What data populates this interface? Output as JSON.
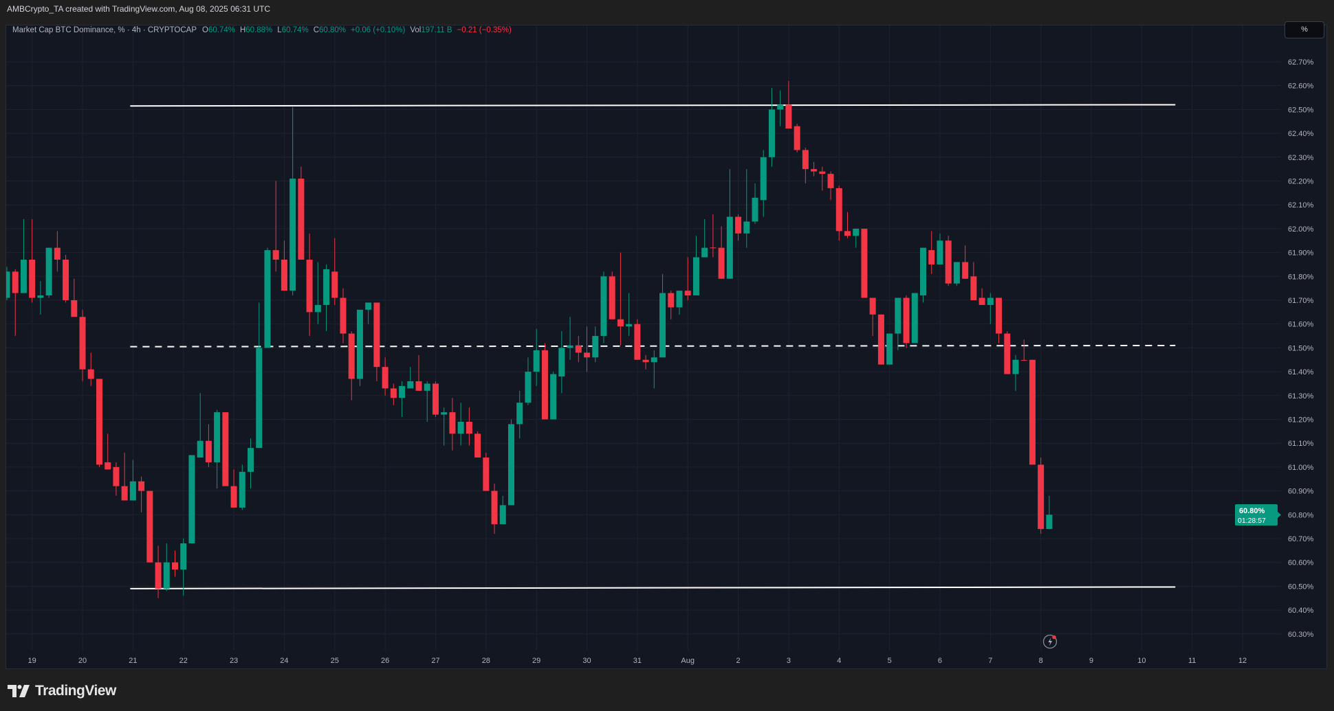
{
  "credit": "AMBCrypto_TA created with TradingView.com, Aug 08, 2025 06:31 UTC",
  "legend": {
    "symbol": "Market Cap BTC Dominance, % · 4h · CRYPTOCAP",
    "o_label": "O",
    "o": "60.74%",
    "h_label": "H",
    "h": "60.88%",
    "l_label": "L",
    "l": "60.74%",
    "c_label": "C",
    "c": "60.80%",
    "change": "+0.06 (+0.10%)",
    "vol_label": "Vol",
    "vol": "197.11 B",
    "vol_change": "−0.21 (−0.35%)"
  },
  "scale_button": "%",
  "current_price": {
    "value": "60.80%",
    "countdown": "01:28:57"
  },
  "brand": "TradingView",
  "colors": {
    "up": "#089981",
    "down": "#f23645",
    "background": "#131722",
    "grid": "#1f2330",
    "line": "#ffffff"
  },
  "icons": {
    "alert": "lightning-icon",
    "logo": "tradingview-logo"
  },
  "chart_data": {
    "type": "candlestick",
    "interval": "4h",
    "ylim": [
      60.25,
      62.8
    ],
    "grid": true,
    "y_ticks": [
      "62.70%",
      "62.60%",
      "62.50%",
      "62.40%",
      "62.30%",
      "62.20%",
      "62.10%",
      "62.00%",
      "61.90%",
      "61.80%",
      "61.70%",
      "61.60%",
      "61.50%",
      "61.40%",
      "61.30%",
      "61.20%",
      "61.10%",
      "61.00%",
      "60.90%",
      "60.80%",
      "60.70%",
      "60.60%",
      "60.50%",
      "60.40%",
      "60.30%"
    ],
    "x_ticks": [
      "19",
      "20",
      "21",
      "22",
      "23",
      "24",
      "25",
      "26",
      "27",
      "28",
      "29",
      "30",
      "31",
      "Aug",
      "2",
      "3",
      "4",
      "5",
      "6",
      "7",
      "8",
      "9",
      "10",
      "11",
      "12"
    ],
    "candle_fields": [
      "time",
      "open",
      "high",
      "low",
      "close"
    ],
    "candles": [
      [
        "07-18 12:00",
        61.71,
        61.84,
        61.7,
        61.82
      ],
      [
        "07-18 16:00",
        61.82,
        61.83,
        61.55,
        61.73
      ],
      [
        "07-18 20:00",
        61.73,
        62.04,
        61.73,
        61.87
      ],
      [
        "07-19 00:00",
        61.87,
        62.04,
        61.69,
        61.71
      ],
      [
        "07-19 04:00",
        61.71,
        61.78,
        61.64,
        61.72
      ],
      [
        "07-19 08:00",
        61.72,
        61.92,
        61.71,
        61.92
      ],
      [
        "07-19 12:00",
        61.92,
        61.99,
        61.82,
        61.87
      ],
      [
        "07-19 16:00",
        61.87,
        61.89,
        61.69,
        61.7
      ],
      [
        "07-19 20:00",
        61.7,
        61.79,
        61.63,
        61.63
      ],
      [
        "07-20 00:00",
        61.63,
        61.66,
        61.36,
        61.41
      ],
      [
        "07-20 04:00",
        61.41,
        61.48,
        61.34,
        61.37
      ],
      [
        "07-20 08:00",
        61.37,
        61.37,
        61.0,
        61.01
      ],
      [
        "07-20 12:00",
        61.02,
        61.14,
        60.99,
        60.99
      ],
      [
        "07-20 16:00",
        61.0,
        61.02,
        60.88,
        60.92
      ],
      [
        "07-20 20:00",
        60.92,
        61.06,
        60.86,
        60.86
      ],
      [
        "07-21 00:00",
        60.86,
        61.03,
        60.86,
        60.94
      ],
      [
        "07-21 04:00",
        60.94,
        60.96,
        60.81,
        60.9
      ],
      [
        "07-21 08:00",
        60.9,
        60.9,
        60.6,
        60.6
      ],
      [
        "07-21 12:00",
        60.6,
        60.67,
        60.45,
        60.49
      ],
      [
        "07-21 16:00",
        60.49,
        60.68,
        60.48,
        60.6
      ],
      [
        "07-21 20:00",
        60.6,
        60.65,
        60.54,
        60.57
      ],
      [
        "07-22 00:00",
        60.57,
        60.7,
        60.46,
        60.68
      ],
      [
        "07-22 04:00",
        60.68,
        61.05,
        60.68,
        61.05
      ],
      [
        "07-22 08:00",
        61.04,
        61.31,
        61.04,
        61.11
      ],
      [
        "07-22 12:00",
        61.11,
        61.18,
        61.0,
        61.02
      ],
      [
        "07-22 16:00",
        61.02,
        61.24,
        60.91,
        61.23
      ],
      [
        "07-22 20:00",
        61.23,
        61.23,
        60.92,
        60.92
      ],
      [
        "07-23 00:00",
        60.92,
        60.99,
        60.83,
        60.83
      ],
      [
        "07-23 04:00",
        60.83,
        61.01,
        60.82,
        60.98
      ],
      [
        "07-23 08:00",
        60.98,
        61.12,
        60.91,
        61.08
      ],
      [
        "07-23 12:00",
        61.08,
        61.69,
        61.08,
        61.5
      ],
      [
        "07-23 16:00",
        61.5,
        61.92,
        61.5,
        61.91
      ],
      [
        "07-23 20:00",
        61.91,
        62.2,
        61.82,
        61.87
      ],
      [
        "07-24 00:00",
        61.87,
        61.95,
        61.74,
        61.74
      ],
      [
        "07-24 04:00",
        61.74,
        62.51,
        61.72,
        62.21
      ],
      [
        "07-24 08:00",
        62.21,
        62.26,
        61.87,
        61.87
      ],
      [
        "07-24 12:00",
        61.87,
        61.98,
        61.55,
        61.65
      ],
      [
        "07-24 16:00",
        61.65,
        61.86,
        61.6,
        61.68
      ],
      [
        "07-24 20:00",
        61.68,
        61.85,
        61.57,
        61.83
      ],
      [
        "07-25 00:00",
        61.82,
        61.96,
        61.68,
        61.71
      ],
      [
        "07-25 04:00",
        61.71,
        61.75,
        61.52,
        61.56
      ],
      [
        "07-25 08:00",
        61.56,
        61.57,
        61.28,
        61.37
      ],
      [
        "07-25 12:00",
        61.37,
        61.66,
        61.34,
        61.66
      ],
      [
        "07-25 16:00",
        61.66,
        61.69,
        61.6,
        61.69
      ],
      [
        "07-25 20:00",
        61.69,
        61.69,
        61.36,
        61.42
      ],
      [
        "07-26 00:00",
        61.42,
        61.46,
        61.3,
        61.33
      ],
      [
        "07-26 04:00",
        61.33,
        61.35,
        61.26,
        61.29
      ],
      [
        "07-26 08:00",
        61.29,
        61.36,
        61.21,
        61.34
      ],
      [
        "07-26 12:00",
        61.33,
        61.42,
        61.33,
        61.36
      ],
      [
        "07-26 16:00",
        61.36,
        61.47,
        61.32,
        61.32
      ],
      [
        "07-26 20:00",
        61.32,
        61.36,
        61.19,
        61.35
      ],
      [
        "07-27 00:00",
        61.35,
        61.36,
        61.21,
        61.22
      ],
      [
        "07-27 04:00",
        61.22,
        61.25,
        61.09,
        61.23
      ],
      [
        "07-27 08:00",
        61.23,
        61.29,
        61.07,
        61.14
      ],
      [
        "07-27 12:00",
        61.14,
        61.27,
        61.09,
        61.19
      ],
      [
        "07-27 16:00",
        61.19,
        61.25,
        61.09,
        61.14
      ],
      [
        "07-27 20:00",
        61.14,
        61.15,
        61.04,
        61.04
      ],
      [
        "07-28 00:00",
        61.04,
        61.06,
        60.9,
        60.9
      ],
      [
        "07-28 04:00",
        60.9,
        60.93,
        60.72,
        60.76
      ],
      [
        "07-28 08:00",
        60.76,
        60.88,
        60.76,
        60.84
      ],
      [
        "07-28 12:00",
        60.84,
        61.2,
        60.84,
        61.18
      ],
      [
        "07-28 16:00",
        61.18,
        61.32,
        61.12,
        61.27
      ],
      [
        "07-28 20:00",
        61.27,
        61.46,
        61.26,
        61.4
      ],
      [
        "07-29 00:00",
        61.4,
        61.58,
        61.34,
        61.49
      ],
      [
        "07-29 04:00",
        61.49,
        61.52,
        61.2,
        61.2
      ],
      [
        "07-29 08:00",
        61.2,
        61.4,
        61.2,
        61.39
      ],
      [
        "07-29 12:00",
        61.38,
        61.57,
        61.31,
        61.5
      ],
      [
        "07-29 16:00",
        61.5,
        61.63,
        61.45,
        61.51
      ],
      [
        "07-29 20:00",
        61.51,
        61.55,
        61.44,
        61.48
      ],
      [
        "07-30 00:00",
        61.48,
        61.59,
        61.4,
        61.46
      ],
      [
        "07-30 04:00",
        61.46,
        61.59,
        61.44,
        61.55
      ],
      [
        "07-30 08:00",
        61.55,
        61.82,
        61.52,
        61.8
      ],
      [
        "07-30 12:00",
        61.8,
        61.82,
        61.62,
        61.62
      ],
      [
        "07-30 16:00",
        61.62,
        61.9,
        61.51,
        61.59
      ],
      [
        "07-30 20:00",
        61.59,
        61.73,
        61.55,
        61.6
      ],
      [
        "07-31 00:00",
        61.6,
        61.62,
        61.45,
        61.45
      ],
      [
        "07-31 04:00",
        61.45,
        61.47,
        61.41,
        61.44
      ],
      [
        "07-31 08:00",
        61.44,
        61.49,
        61.33,
        61.46
      ],
      [
        "07-31 12:00",
        61.46,
        61.81,
        61.46,
        61.73
      ],
      [
        "07-31 16:00",
        61.73,
        61.74,
        61.62,
        61.67
      ],
      [
        "07-31 20:00",
        61.67,
        61.74,
        61.64,
        61.74
      ],
      [
        "08-01 00:00",
        61.74,
        61.88,
        61.7,
        61.72
      ],
      [
        "08-01 04:00",
        61.72,
        61.97,
        61.72,
        61.88
      ],
      [
        "08-01 08:00",
        61.88,
        62.04,
        61.88,
        61.92
      ],
      [
        "08-01 12:00",
        61.921,
        62.06,
        61.88,
        61.918
      ],
      [
        "08-01 16:00",
        61.92,
        62.01,
        61.79,
        61.79
      ],
      [
        "08-01 20:00",
        61.79,
        62.25,
        61.79,
        62.05
      ],
      [
        "08-02 00:00",
        62.05,
        62.06,
        61.95,
        61.98
      ],
      [
        "08-02 04:00",
        61.98,
        62.25,
        61.92,
        62.03
      ],
      [
        "08-02 08:00",
        62.03,
        62.19,
        62.02,
        62.13
      ],
      [
        "08-02 12:00",
        62.12,
        62.33,
        62.05,
        62.3
      ],
      [
        "08-02 16:00",
        62.3,
        62.59,
        62.26,
        62.5
      ],
      [
        "08-02 20:00",
        62.5,
        62.58,
        62.43,
        62.52
      ],
      [
        "08-03 00:00",
        62.52,
        62.62,
        62.42,
        62.42
      ],
      [
        "08-03 04:00",
        62.43,
        62.44,
        62.32,
        62.33
      ],
      [
        "08-03 08:00",
        62.33,
        62.34,
        62.19,
        62.25
      ],
      [
        "08-03 12:00",
        62.25,
        62.28,
        62.22,
        62.24
      ],
      [
        "08-03 16:00",
        62.24,
        62.26,
        62.16,
        62.23
      ],
      [
        "08-03 20:00",
        62.23,
        62.24,
        62.12,
        62.17
      ],
      [
        "08-04 00:00",
        62.17,
        62.18,
        61.95,
        61.99
      ],
      [
        "08-04 04:00",
        61.99,
        62.07,
        61.96,
        61.97
      ],
      [
        "08-04 08:00",
        61.97,
        62.0,
        61.92,
        62.0
      ],
      [
        "08-04 12:00",
        62.0,
        62.0,
        61.71,
        61.71
      ],
      [
        "08-04 16:00",
        61.71,
        61.71,
        61.55,
        61.64
      ],
      [
        "08-04 20:00",
        61.64,
        61.64,
        61.43,
        61.43
      ],
      [
        "08-05 00:00",
        61.43,
        61.56,
        61.43,
        61.56
      ],
      [
        "08-05 04:00",
        61.56,
        61.71,
        61.49,
        61.71
      ],
      [
        "08-05 08:00",
        61.71,
        61.72,
        61.5,
        61.52
      ],
      [
        "08-05 12:00",
        61.52,
        61.73,
        61.52,
        61.73
      ],
      [
        "08-05 16:00",
        61.72,
        61.92,
        61.69,
        61.92
      ],
      [
        "08-05 20:00",
        61.91,
        61.99,
        61.81,
        61.85
      ],
      [
        "08-06 00:00",
        61.85,
        61.98,
        61.85,
        61.95
      ],
      [
        "08-06 04:00",
        61.95,
        61.97,
        61.76,
        61.77
      ],
      [
        "08-06 08:00",
        61.77,
        61.86,
        61.76,
        61.86
      ],
      [
        "08-06 12:00",
        61.86,
        61.93,
        61.79,
        61.79
      ],
      [
        "08-06 16:00",
        61.8,
        61.86,
        61.7,
        61.7
      ],
      [
        "08-06 20:00",
        61.71,
        61.75,
        61.68,
        61.68
      ],
      [
        "08-07 00:00",
        61.68,
        61.73,
        61.6,
        61.71
      ],
      [
        "08-07 04:00",
        61.71,
        61.71,
        61.52,
        61.56
      ],
      [
        "08-07 08:00",
        61.56,
        61.57,
        61.39,
        61.39
      ],
      [
        "08-07 12:00",
        61.39,
        61.47,
        61.32,
        61.45
      ],
      [
        "08-07 16:00",
        61.449,
        61.535,
        61.445,
        61.447
      ],
      [
        "08-07 20:00",
        61.45,
        61.45,
        61.01,
        61.01
      ],
      [
        "08-08 00:00",
        61.01,
        61.04,
        60.72,
        60.74
      ],
      [
        "08-08 04:00",
        60.74,
        60.88,
        60.74,
        60.8
      ]
    ],
    "level_lines": [
      {
        "price_start": 62.515,
        "price_end": 62.52,
        "from": "07-21 00:00",
        "to": "08-10 16:00",
        "style": "solid"
      },
      {
        "price_start": 61.505,
        "price_end": 61.51,
        "from": "07-21 00:00",
        "to": "08-10 16:00",
        "style": "dashed"
      },
      {
        "price_start": 60.49,
        "price_end": 60.497,
        "from": "07-21 00:00",
        "to": "08-10 16:00",
        "style": "solid"
      }
    ]
  }
}
